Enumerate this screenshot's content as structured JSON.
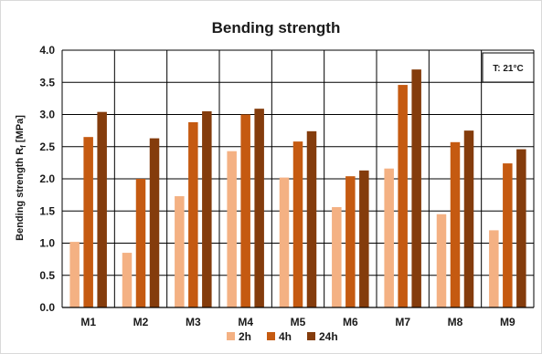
{
  "chart_data": {
    "type": "bar",
    "title": "Bending strength",
    "ylabel_main": "Bending strength R",
    "ylabel_sub": "f",
    "ylabel_unit": " [MPa]",
    "xlabel": "",
    "ylim": [
      0,
      4.0
    ],
    "ytick_step": 0.5,
    "ytick_labels": [
      "0.0",
      "0.5",
      "1.0",
      "1.5",
      "2.0",
      "2.5",
      "3.0",
      "3.5",
      "4.0"
    ],
    "grid": true,
    "legend_position": "bottom",
    "annotation": "T: 21°C",
    "categories": [
      "M1",
      "M2",
      "M3",
      "M4",
      "M5",
      "M6",
      "M7",
      "M8",
      "M9"
    ],
    "series": [
      {
        "name": "2h",
        "color": "#f4b183",
        "values": [
          1.02,
          0.85,
          1.73,
          2.43,
          2.02,
          1.56,
          2.16,
          1.45,
          1.2
        ]
      },
      {
        "name": "4h",
        "color": "#c55a11",
        "values": [
          2.65,
          2.0,
          2.88,
          3.0,
          2.58,
          2.04,
          3.46,
          2.57,
          2.24
        ]
      },
      {
        "name": "24h",
        "color": "#843c0c",
        "values": [
          3.04,
          2.63,
          3.05,
          3.09,
          2.74,
          2.13,
          3.7,
          2.75,
          2.46
        ]
      }
    ]
  }
}
